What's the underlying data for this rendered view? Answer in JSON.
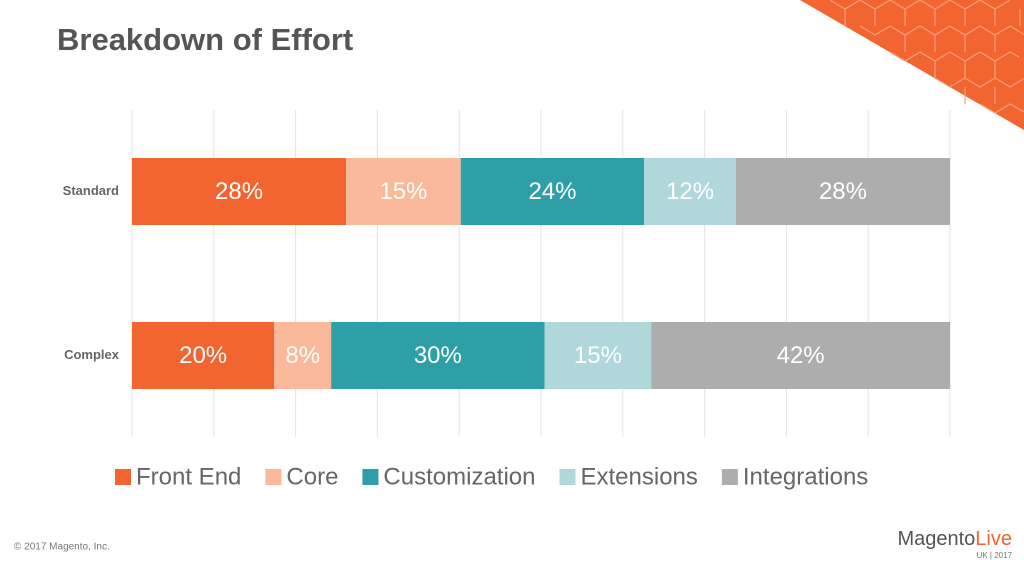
{
  "chart_data": {
    "type": "bar",
    "orientation": "horizontal",
    "stacked": "percent",
    "title": "Breakdown of Effort",
    "categories": [
      "Standard",
      "Complex"
    ],
    "series": [
      {
        "name": "Front End",
        "color": "#f26430",
        "values": [
          28,
          20
        ],
        "value_labels": [
          "28%",
          "20%"
        ]
      },
      {
        "name": "Core",
        "color": "#f9b99a",
        "values": [
          15,
          8
        ],
        "value_labels": [
          "15%",
          "8%"
        ]
      },
      {
        "name": "Customization",
        "color": "#2e9fa6",
        "values": [
          24,
          30
        ],
        "value_labels": [
          "24%",
          "30%"
        ]
      },
      {
        "name": "Extensions",
        "color": "#b0d8da",
        "values": [
          12,
          15
        ],
        "value_labels": [
          "12%",
          "15%"
        ]
      },
      {
        "name": "Integrations",
        "color": "#adadae",
        "values": [
          28,
          42
        ],
        "value_labels": [
          "28%",
          "42%"
        ]
      }
    ],
    "grid": true,
    "legend": "bottom"
  },
  "footer": {
    "copyright": "© 2017 Magento, Inc.",
    "logo": {
      "name": "Magento",
      "accent": "Live",
      "sub": "UK | 2017"
    }
  }
}
